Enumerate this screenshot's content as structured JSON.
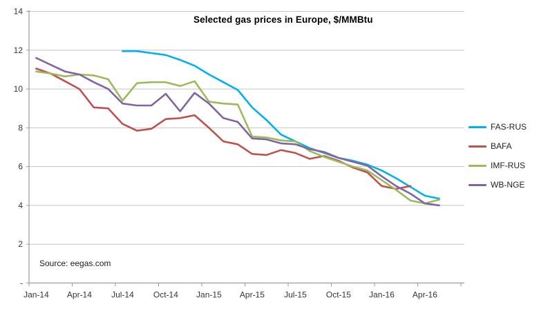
{
  "chart_data": {
    "type": "line",
    "title": "Selected gas prices in Europe, $/MMBtu",
    "source": "Source: eegas.com",
    "xlabel": "",
    "ylabel": "",
    "ylim": [
      0,
      14
    ],
    "grid": "horizontal",
    "legend_position": "right",
    "categories": [
      "Jan-14",
      "Feb-14",
      "Mar-14",
      "Apr-14",
      "May-14",
      "Jun-14",
      "Jul-14",
      "Aug-14",
      "Sep-14",
      "Oct-14",
      "Nov-14",
      "Dec-14",
      "Jan-15",
      "Feb-15",
      "Mar-15",
      "Apr-15",
      "May-15",
      "Jun-15",
      "Jul-15",
      "Aug-15",
      "Sep-15",
      "Oct-15",
      "Nov-15",
      "Dec-15",
      "Jan-16",
      "Feb-16",
      "Mar-16",
      "Apr-16",
      "May-16"
    ],
    "x_tick_labels": [
      "Jan-14",
      "Apr-14",
      "Jul-14",
      "Oct-14",
      "Jan-15",
      "Apr-15",
      "Jul-15",
      "Oct-15",
      "Jan-16",
      "Apr-16"
    ],
    "x_tick_step": 3,
    "yticks": {
      "values": [
        0,
        2,
        4,
        6,
        8,
        10,
        12,
        14
      ],
      "labels": [
        "-",
        "2",
        "4",
        "6",
        "8",
        "10",
        "12",
        "14"
      ]
    },
    "series": [
      {
        "name": "FAS-RUS",
        "color": "#00B0F0",
        "values": [
          null,
          null,
          null,
          null,
          null,
          null,
          11.95,
          11.95,
          11.85,
          11.75,
          11.5,
          11.2,
          10.75,
          10.35,
          9.95,
          9.05,
          8.4,
          7.65,
          7.3,
          6.95,
          6.7,
          6.45,
          6.3,
          6.1,
          5.8,
          5.4,
          4.95,
          4.5,
          4.35
        ]
      },
      {
        "name": "BAFA",
        "color": "#C0504D",
        "values": [
          11.05,
          10.8,
          10.4,
          10.0,
          9.05,
          9.0,
          8.2,
          7.85,
          7.95,
          8.45,
          8.5,
          8.65,
          8.0,
          7.3,
          7.15,
          6.65,
          6.6,
          6.85,
          6.7,
          6.4,
          6.55,
          6.3,
          5.95,
          5.7,
          5.0,
          4.85,
          5.0,
          null,
          null
        ]
      },
      {
        "name": "IMF-RUS",
        "color": "#9BBB59",
        "values": [
          10.9,
          10.8,
          10.65,
          10.75,
          10.7,
          10.5,
          9.4,
          10.3,
          10.35,
          10.35,
          10.15,
          10.4,
          9.35,
          9.25,
          9.2,
          7.55,
          7.5,
          7.35,
          7.3,
          6.8,
          6.5,
          6.25,
          6.0,
          5.8,
          5.3,
          4.8,
          4.25,
          4.1,
          4.3
        ]
      },
      {
        "name": "WB-NGE",
        "color": "#8064A2",
        "values": [
          11.6,
          11.25,
          10.9,
          10.75,
          10.35,
          10.0,
          9.25,
          9.15,
          9.15,
          9.75,
          8.85,
          9.8,
          9.25,
          8.5,
          8.3,
          7.45,
          7.4,
          7.2,
          7.15,
          6.9,
          6.75,
          6.45,
          6.25,
          6.05,
          5.5,
          5.0,
          4.6,
          4.1,
          4.0
        ]
      }
    ]
  }
}
